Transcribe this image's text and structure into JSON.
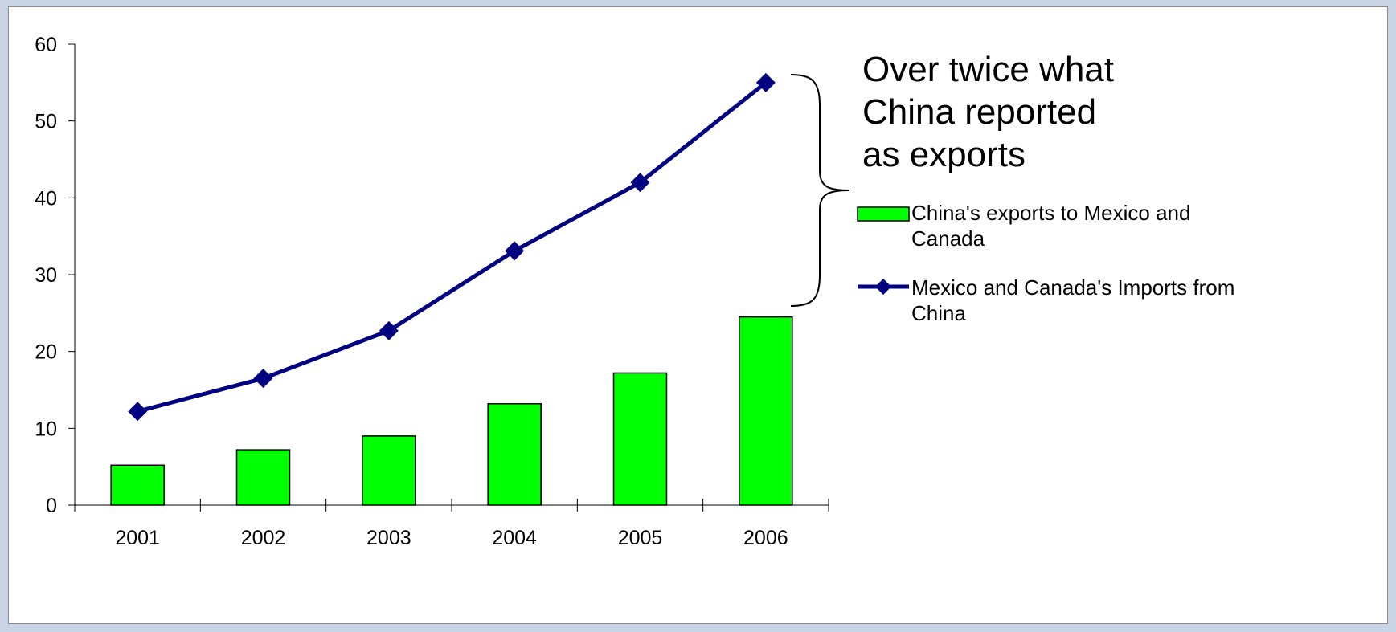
{
  "chart_data": {
    "type": "bar",
    "categories": [
      "2001",
      "2002",
      "2003",
      "2004",
      "2005",
      "2006"
    ],
    "series": [
      {
        "name": "China's exports to Mexico and Canada",
        "kind": "bar",
        "color": "#00ff00",
        "values": [
          5.2,
          7.2,
          9.0,
          13.2,
          17.2,
          24.5
        ]
      },
      {
        "name": "Mexico and Canada's Imports from China",
        "kind": "line",
        "marker": "diamond",
        "color": "#000080",
        "values": [
          12.2,
          16.5,
          22.7,
          33.1,
          42.0,
          55.0
        ]
      }
    ],
    "ylim": [
      0,
      60
    ],
    "yticks": [
      "0",
      "10",
      "20",
      "30",
      "40",
      "50",
      "60"
    ],
    "title": "",
    "xlabel": "",
    "ylabel": "",
    "grid": false,
    "legend_position": "right",
    "annotation": {
      "lines": [
        "Over twice what",
        "China reported",
        "as exports"
      ],
      "bracket": "curly-brace"
    },
    "legend": [
      {
        "lines": [
          "China's exports to Mexico and",
          "Canada"
        ]
      },
      {
        "lines": [
          "Mexico and Canada's Imports from",
          "China"
        ]
      }
    ]
  }
}
